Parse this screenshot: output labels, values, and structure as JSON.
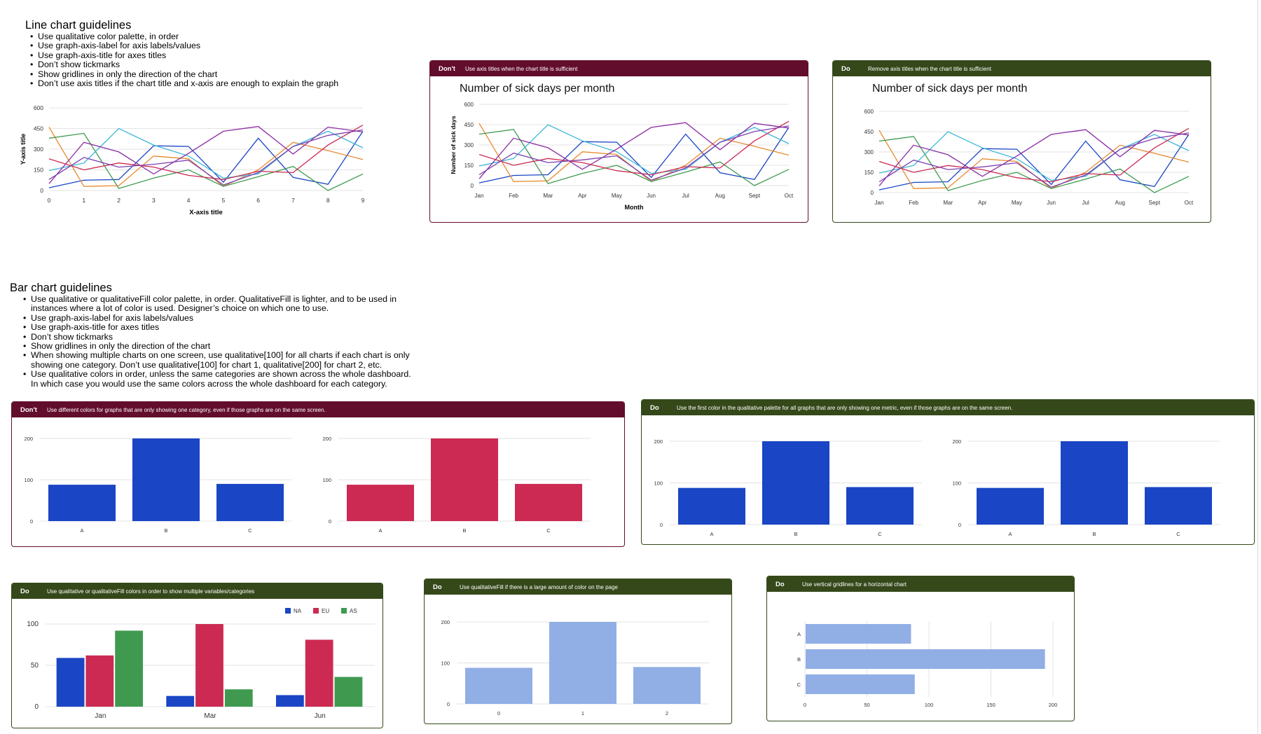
{
  "line_guidelines": {
    "title": "Line chart guidelines",
    "items": [
      "Use qualitative color palette, in order",
      "Use graph-axis-label for axis labels/values",
      "Use graph-axis-title for axes titles",
      "Don’t show tickmarks",
      "Show gridlines in only the direction of the chart",
      "Don’t use axis titles if the chart title and x-axis are enough to explain the graph"
    ]
  },
  "bar_guidelines": {
    "title": "Bar chart guidelines",
    "items": [
      "Use qualitative or qualitativeFill color palette, in order. QualitativeFill is lighter, and to be used in instances where a lot of color is used. Designer’s choice on which one to use.",
      "Use graph-axis-label for axis labels/values",
      "Use graph-axis-title for axes titles",
      "Don’t show tickmarks",
      "Show gridlines in only the direction of the chart",
      "When showing multiple charts on one screen, use qualitative[100] for all charts if each chart is only showing one category. Don’t use qualitative[100] for chart 1, qualitative[200] for chart 2, etc.",
      "Use qualitative colors in order, unless the same categories are shown across the whole dashboard. In which case you would use the same colors across the whole dashboard for each category."
    ]
  },
  "cards": {
    "line_dont": {
      "tag": "Don't",
      "text": "Use axis titles when the chart title is sufficient"
    },
    "line_do": {
      "tag": "Do",
      "text": "Remove axis titles when the chart title is sufficient"
    },
    "bar_dont": {
      "tag": "Don't",
      "text": "Use  different colors for graphs that are only showing one category, even if those graphs are on the same screen."
    },
    "bar_do": {
      "tag": "Do",
      "text": "Use the first color in the qualitative palette for all graphs that are only showing one metric, even if those graphs are on the same screen."
    },
    "multi_do": {
      "tag": "Do",
      "text": "Use qualitative or qualitativeFill colors in order to show multiple variables/categories"
    },
    "fill_do": {
      "tag": "Do",
      "text": "Use qualitativeFill if there is a large amount of color on the page"
    },
    "horiz_do": {
      "tag": "Do",
      "text": "Use vertical gridlines for a horizontal chart"
    }
  },
  "palette": {
    "qualitative": [
      "#1a45c4",
      "#cc2a52",
      "#3f9a50"
    ],
    "lines": [
      "#1a45c4",
      "#e88a2e",
      "#3f9a50",
      "#3cb7d8",
      "#8b2ca4",
      "#cc2a52",
      "#7b3fb0"
    ],
    "fill_light": "#91aee5",
    "dont_header": "#620d2b",
    "do_header": "#35481a"
  },
  "chart_data": [
    {
      "id": "line_generic",
      "type": "line",
      "title": "",
      "xlabel": "X-axis title",
      "ylabel": "Y-axis title",
      "x": [
        "0",
        "1",
        "2",
        "3",
        "4",
        "5",
        "6",
        "7",
        "8",
        "9"
      ],
      "yticks": [
        "0",
        "150",
        "300",
        "450",
        "600"
      ],
      "ylim": [
        0,
        600
      ],
      "series": [
        {
          "values": [
            20,
            75,
            80,
            325,
            320,
            60,
            380,
            95,
            45,
            430
          ]
        },
        {
          "values": [
            460,
            30,
            35,
            250,
            230,
            30,
            150,
            350,
            290,
            225
          ]
        },
        {
          "values": [
            380,
            415,
            15,
            90,
            150,
            30,
            100,
            175,
            0,
            120
          ]
        },
        {
          "values": [
            145,
            200,
            450,
            330,
            250,
            90,
            120,
            320,
            430,
            310
          ]
        },
        {
          "values": [
            50,
            350,
            280,
            120,
            270,
            430,
            465,
            265,
            460,
            425
          ]
        },
        {
          "values": [
            230,
            150,
            200,
            170,
            110,
            80,
            140,
            130,
            330,
            475
          ]
        },
        {
          "values": [
            80,
            240,
            170,
            190,
            220,
            40,
            130,
            320,
            400,
            440
          ]
        }
      ]
    },
    {
      "id": "line_dont",
      "type": "line",
      "title": "Number of sick days per month",
      "xlabel": "Month",
      "ylabel": "Number of sick days",
      "x": [
        "Jan",
        "Feb",
        "Mar",
        "Apr",
        "May",
        "Jun",
        "Jul",
        "Aug",
        "Sept",
        "Oct"
      ],
      "yticks": [
        "0",
        "150",
        "300",
        "450",
        "600"
      ],
      "ylim": [
        0,
        600
      ],
      "series": [
        {
          "values": [
            20,
            75,
            80,
            325,
            320,
            60,
            380,
            95,
            45,
            430
          ]
        },
        {
          "values": [
            460,
            30,
            35,
            250,
            230,
            30,
            150,
            350,
            290,
            225
          ]
        },
        {
          "values": [
            380,
            415,
            15,
            90,
            150,
            30,
            100,
            175,
            0,
            120
          ]
        },
        {
          "values": [
            145,
            200,
            450,
            330,
            250,
            90,
            120,
            320,
            430,
            310
          ]
        },
        {
          "values": [
            50,
            350,
            280,
            120,
            270,
            430,
            465,
            265,
            460,
            425
          ]
        },
        {
          "values": [
            230,
            150,
            200,
            170,
            110,
            80,
            140,
            130,
            330,
            475
          ]
        },
        {
          "values": [
            80,
            240,
            170,
            190,
            220,
            40,
            130,
            320,
            400,
            440
          ]
        }
      ]
    },
    {
      "id": "line_do",
      "type": "line",
      "title": "Number of sick days per month",
      "xlabel": "",
      "ylabel": "",
      "x": [
        "Jan",
        "Feb",
        "Mar",
        "Apr",
        "May",
        "Jun",
        "Jul",
        "Aug",
        "Sept",
        "Oct"
      ],
      "yticks": [
        "0",
        "150",
        "300",
        "450",
        "600"
      ],
      "ylim": [
        0,
        600
      ],
      "series": [
        {
          "values": [
            20,
            75,
            80,
            325,
            320,
            60,
            380,
            95,
            45,
            430
          ]
        },
        {
          "values": [
            460,
            30,
            35,
            250,
            230,
            30,
            150,
            350,
            290,
            225
          ]
        },
        {
          "values": [
            380,
            415,
            15,
            90,
            150,
            30,
            100,
            175,
            0,
            120
          ]
        },
        {
          "values": [
            145,
            200,
            450,
            330,
            250,
            90,
            120,
            320,
            430,
            310
          ]
        },
        {
          "values": [
            50,
            350,
            280,
            120,
            270,
            430,
            465,
            265,
            460,
            425
          ]
        },
        {
          "values": [
            230,
            150,
            200,
            170,
            110,
            80,
            140,
            130,
            330,
            475
          ]
        },
        {
          "values": [
            80,
            240,
            170,
            190,
            220,
            40,
            130,
            320,
            400,
            440
          ]
        }
      ]
    },
    {
      "id": "bar_dont_1",
      "type": "bar",
      "categories": [
        "A",
        "B",
        "C"
      ],
      "values": [
        88,
        200,
        90
      ],
      "yticks": [
        "0",
        "100",
        "200"
      ],
      "ylim": [
        0,
        200
      ]
    },
    {
      "id": "bar_dont_2",
      "type": "bar",
      "categories": [
        "A",
        "B",
        "C"
      ],
      "values": [
        88,
        200,
        90
      ],
      "yticks": [
        "0",
        "100",
        "200"
      ],
      "ylim": [
        0,
        200
      ]
    },
    {
      "id": "bar_do_1",
      "type": "bar",
      "categories": [
        "A",
        "B",
        "C"
      ],
      "values": [
        88,
        200,
        90
      ],
      "yticks": [
        "0",
        "100",
        "200"
      ],
      "ylim": [
        0,
        200
      ]
    },
    {
      "id": "bar_do_2",
      "type": "bar",
      "categories": [
        "A",
        "B",
        "C"
      ],
      "values": [
        88,
        200,
        90
      ],
      "yticks": [
        "0",
        "100",
        "200"
      ],
      "ylim": [
        0,
        200
      ]
    },
    {
      "id": "bar_multi",
      "type": "bar",
      "categories": [
        "Jan",
        "Mar",
        "Jun"
      ],
      "yticks": [
        "0",
        "50",
        "100"
      ],
      "ylim": [
        0,
        100
      ],
      "legend": "top-right",
      "series": [
        {
          "name": "NA",
          "values": [
            59,
            13,
            14
          ]
        },
        {
          "name": "EU",
          "values": [
            62,
            100,
            81
          ]
        },
        {
          "name": "AS",
          "values": [
            92,
            21,
            36
          ]
        }
      ]
    },
    {
      "id": "bar_fill",
      "type": "bar",
      "categories": [
        "0",
        "1",
        "2"
      ],
      "values": [
        88,
        200,
        90
      ],
      "yticks": [
        "0",
        "100",
        "200"
      ],
      "ylim": [
        0,
        200
      ]
    },
    {
      "id": "bar_horizontal",
      "type": "bar",
      "orientation": "horizontal",
      "categories": [
        "A",
        "B",
        "C"
      ],
      "values": [
        85,
        193,
        88
      ],
      "xticks": [
        "0",
        "50",
        "100",
        "150",
        "200"
      ],
      "xlim": [
        0,
        200
      ]
    }
  ]
}
